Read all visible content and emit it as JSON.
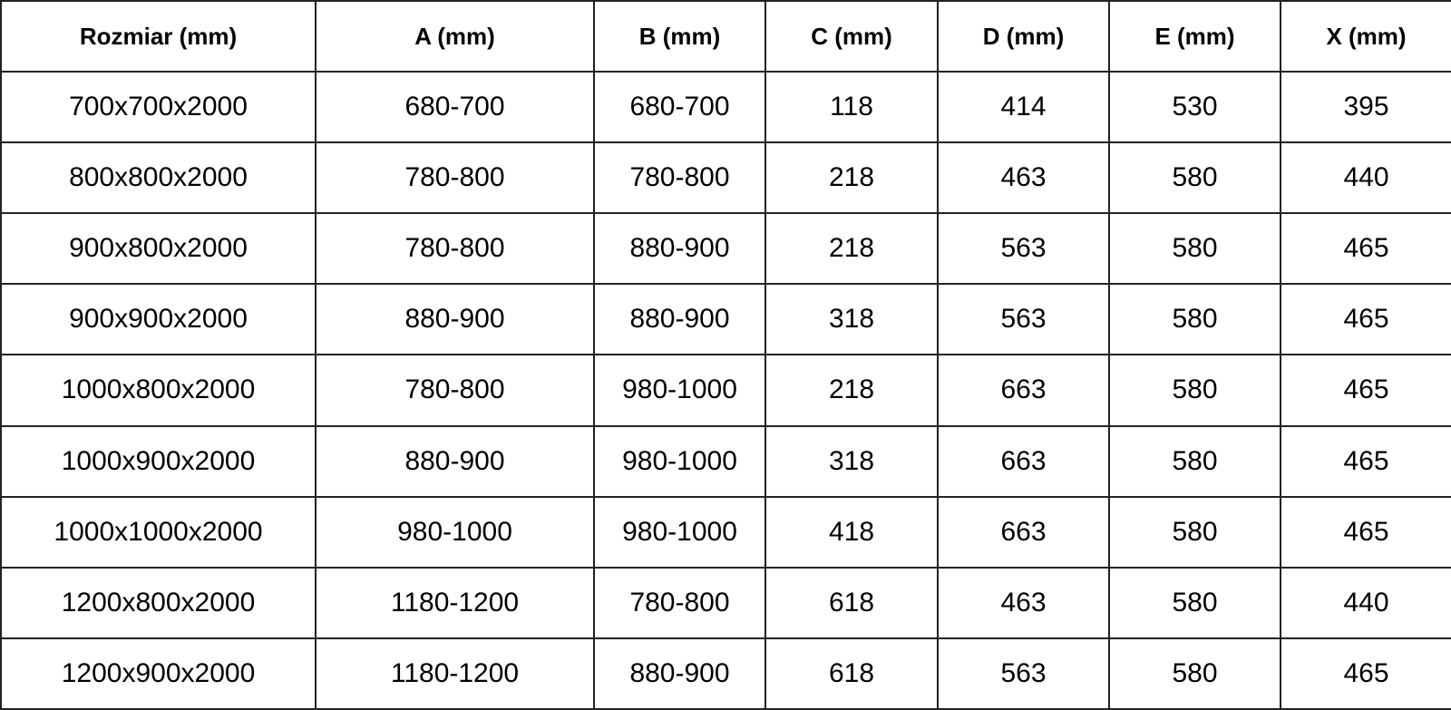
{
  "table": {
    "headers": [
      "Rozmiar (mm)",
      "A (mm)",
      "B (mm)",
      "C (mm)",
      "D (mm)",
      "E (mm)",
      "X (mm)"
    ],
    "rows": [
      [
        "700x700x2000",
        "680-700",
        "680-700",
        "118",
        "414",
        "530",
        "395"
      ],
      [
        "800x800x2000",
        "780-800",
        "780-800",
        "218",
        "463",
        "580",
        "440"
      ],
      [
        "900x800x2000",
        "780-800",
        "880-900",
        "218",
        "563",
        "580",
        "465"
      ],
      [
        "900x900x2000",
        "880-900",
        "880-900",
        "318",
        "563",
        "580",
        "465"
      ],
      [
        "1000x800x2000",
        "780-800",
        "980-1000",
        "218",
        "663",
        "580",
        "465"
      ],
      [
        "1000x900x2000",
        "880-900",
        "980-1000",
        "318",
        "663",
        "580",
        "465"
      ],
      [
        "1000x1000x2000",
        "980-1000",
        "980-1000",
        "418",
        "663",
        "580",
        "465"
      ],
      [
        "1200x800x2000",
        "1180-1200",
        "780-800",
        "618",
        "463",
        "580",
        "440"
      ],
      [
        "1200x900x2000",
        "1180-1200",
        "880-900",
        "618",
        "563",
        "580",
        "465"
      ]
    ]
  }
}
